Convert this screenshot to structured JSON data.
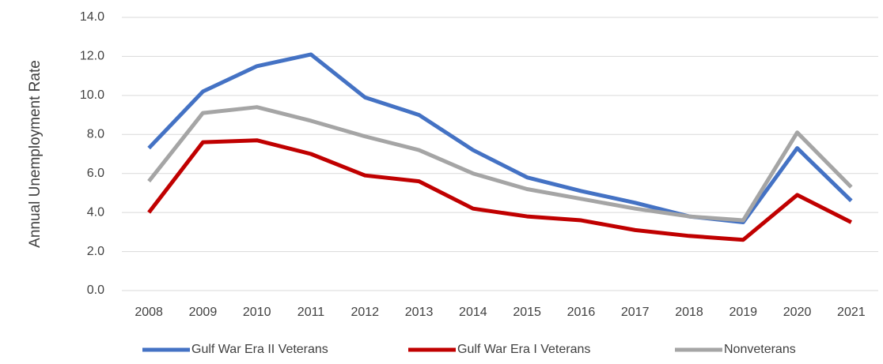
{
  "chart_data": {
    "type": "line",
    "y_label": "Annual Unemployment Rate",
    "categories": [
      "2008",
      "2009",
      "2010",
      "2011",
      "2012",
      "2013",
      "2014",
      "2015",
      "2016",
      "2017",
      "2018",
      "2019",
      "2020",
      "2021"
    ],
    "series": [
      {
        "name": "Gulf War Era II Veterans",
        "color": "#4472c4",
        "values": [
          7.3,
          10.2,
          11.5,
          12.1,
          9.9,
          9.0,
          7.2,
          5.8,
          5.1,
          4.5,
          3.8,
          3.5,
          7.3,
          4.6
        ]
      },
      {
        "name": "Gulf War Era I Veterans",
        "color": "#c00000",
        "values": [
          4.0,
          7.6,
          7.7,
          7.0,
          5.9,
          5.6,
          4.2,
          3.8,
          3.6,
          3.1,
          2.8,
          2.6,
          4.9,
          3.5
        ]
      },
      {
        "name": "Nonveterans",
        "color": "#a5a5a5",
        "values": [
          5.6,
          9.1,
          9.4,
          8.7,
          7.9,
          7.2,
          6.0,
          5.2,
          4.7,
          4.2,
          3.8,
          3.6,
          8.1,
          5.3
        ]
      }
    ],
    "ylim": [
      0,
      14
    ],
    "yticks": [
      {
        "value": 0,
        "label": "0.0"
      },
      {
        "value": 2,
        "label": "2.0"
      },
      {
        "value": 4,
        "label": "4.0"
      },
      {
        "value": 6,
        "label": "6.0"
      },
      {
        "value": 8,
        "label": "8.0"
      },
      {
        "value": 10,
        "label": "10.0"
      },
      {
        "value": 12,
        "label": "12.0"
      },
      {
        "value": 14,
        "label": "14.0"
      }
    ],
    "grid": true,
    "legend": "bottom"
  }
}
